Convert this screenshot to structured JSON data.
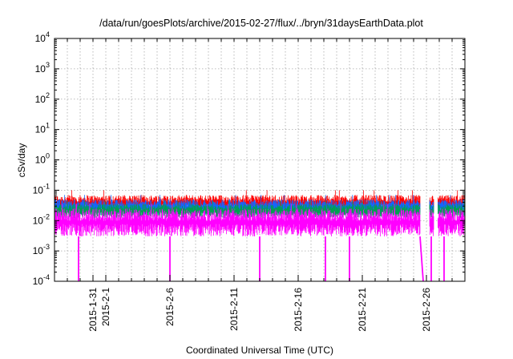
{
  "chart_data": {
    "type": "line",
    "title": "/data/run/goesPlots/archive/2015-02-27/flux/../bryn/31daysEarthData.plot",
    "xlabel": "Coordinated Universal Time (UTC)",
    "ylabel": "cSv/day",
    "yscale": "log",
    "ylim": [
      0.0001,
      10000
    ],
    "xlim": [
      "2015-01-28",
      "2015-03-01"
    ],
    "grid": true,
    "y_ticks": [
      {
        "value": 10000,
        "base": "10",
        "exp": "4"
      },
      {
        "value": 1000,
        "base": "10",
        "exp": "3"
      },
      {
        "value": 100,
        "base": "10",
        "exp": "2"
      },
      {
        "value": 10,
        "base": "10",
        "exp": "1"
      },
      {
        "value": 1,
        "base": "10",
        "exp": "0"
      },
      {
        "value": 0.1,
        "base": "10",
        "exp": "-1"
      },
      {
        "value": 0.01,
        "base": "10",
        "exp": "-2"
      },
      {
        "value": 0.001,
        "base": "10",
        "exp": "-3"
      },
      {
        "value": 0.0001,
        "base": "10",
        "exp": "-4"
      }
    ],
    "x_ticks": [
      {
        "date": "2015-01-31",
        "label": "2015-1-31"
      },
      {
        "date": "2015-02-01",
        "label": "2015-2-1"
      },
      {
        "date": "2015-02-06",
        "label": "2015-2-6"
      },
      {
        "date": "2015-02-11",
        "label": "2015-2-11"
      },
      {
        "date": "2015-02-16",
        "label": "2015-2-16"
      },
      {
        "date": "2015-02-21",
        "label": "2015-2-21"
      },
      {
        "date": "2015-02-26",
        "label": "2015-2-26"
      }
    ],
    "data_gaps": [
      [
        "2015-02-25T12:00",
        "2015-02-26T06:00"
      ],
      [
        "2015-02-26T14:00",
        "2015-02-26T21:00"
      ]
    ],
    "series": [
      {
        "color": "#ff0000",
        "typical_low": 0.02,
        "typical_high": 0.07,
        "peak": 0.1
      },
      {
        "color": "#1565ff",
        "typical_low": 0.015,
        "typical_high": 0.05,
        "peak": 0.07
      },
      {
        "color": "#00a050",
        "typical_low": 0.012,
        "typical_high": 0.035,
        "peak": 0.045
      },
      {
        "color": "#ff00ff",
        "typical_low": 0.003,
        "typical_high": 0.025,
        "peak": 0.035,
        "dropouts_to_min": [
          "2015-01-29T21:00",
          "2015-02-06T00:00",
          "2015-02-13T00:00",
          "2015-02-18T03:00",
          "2015-02-20T00:00",
          "2015-02-26T09:00",
          "2015-02-27T09:00"
        ]
      }
    ]
  }
}
